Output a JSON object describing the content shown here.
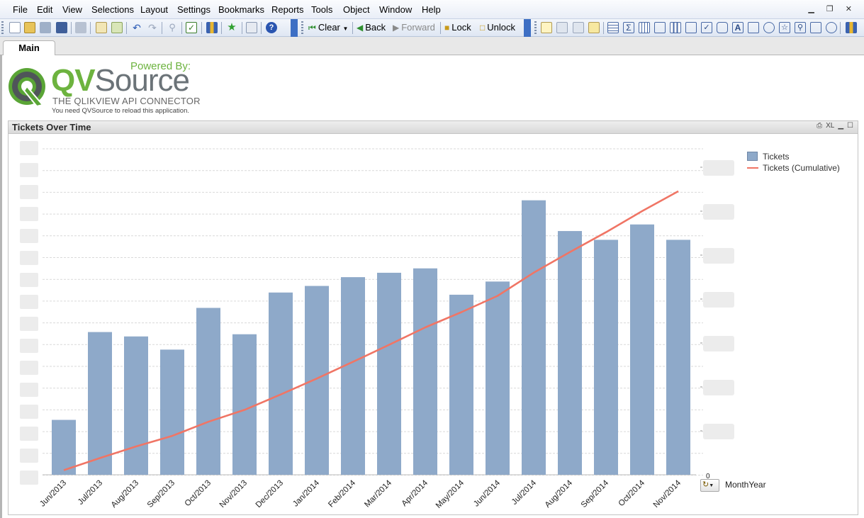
{
  "menu": [
    "File",
    "Edit",
    "View",
    "Selections",
    "Layout",
    "Settings",
    "Bookmarks",
    "Reports",
    "Tools",
    "Object",
    "Window",
    "Help"
  ],
  "toolbar": {
    "clear_label": "Clear",
    "back_label": "Back",
    "forward_label": "Forward",
    "lock_label": "Lock",
    "unlock_label": "Unlock"
  },
  "tabs": [
    "Main"
  ],
  "logo": {
    "powered_by": "Powered By:",
    "brand_qv": "QV",
    "brand_source": "Source",
    "tagline": "THE QLIKVIEW API CONNECTOR",
    "reload_note": "You need QVSource to reload this application."
  },
  "chart_object": {
    "title": "Tickets Over Time",
    "xl_label": "XL",
    "dimension_label": "MonthYear",
    "zero_label": "0"
  },
  "colors": {
    "bar": "#8ea9c9",
    "line": "#f07565",
    "brand_green": "#6db33f"
  },
  "chart_data": {
    "type": "bar",
    "title": "Tickets Over Time",
    "xlabel": "MonthYear",
    "categories": [
      "Jun/2013",
      "Jul/2013",
      "Aug/2013",
      "Sep/2013",
      "Oct/2013",
      "Nov/2013",
      "Dec/2013",
      "Jan/2014",
      "Feb/2014",
      "Mar/2014",
      "Apr/2014",
      "May/2014",
      "Jun/2014",
      "Jul/2014",
      "Aug/2014",
      "Sep/2014",
      "Oct/2014",
      "Nov/2014"
    ],
    "series": [
      {
        "name": "Tickets",
        "type": "bar",
        "axis": "left",
        "values": [
          25,
          65,
          63,
          57,
          76,
          64,
          83,
          86,
          90,
          92,
          94,
          82,
          88,
          125,
          111,
          107,
          114,
          107
        ]
      },
      {
        "name": "Tickets (Cumulative)",
        "type": "line",
        "axis": "right",
        "values": [
          25,
          90,
          153,
          210,
          286,
          350,
          433,
          519,
          609,
          701,
          795,
          877,
          965,
          1090,
          1201,
          1308,
          1422,
          1529
        ]
      }
    ],
    "ylim_left": [
      0,
      152
    ],
    "ylim_right": [
      0,
      1800
    ],
    "left_axis_labels_visible": false,
    "right_axis_labels_visible": false,
    "grid": true,
    "legend_position": "right"
  }
}
